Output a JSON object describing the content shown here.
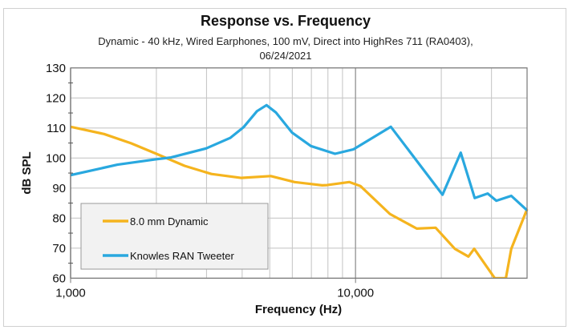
{
  "chart_data": {
    "type": "line",
    "title": "Response vs. Frequency",
    "subtitle_line1": "Dynamic - 40 kHz,  Wired Earphones, 100 mV, Direct into HighRes 711 (RA0403),",
    "subtitle_line2": "06/24/2021",
    "xlabel": "Frequency (Hz)",
    "ylabel": "dB SPL",
    "xscale": "log",
    "xlim": [
      1000,
      40000
    ],
    "ylim": [
      60,
      130
    ],
    "xticks": [
      {
        "value": 1000,
        "label": "1,000"
      },
      {
        "value": 10000,
        "label": "10,000"
      }
    ],
    "yticks": [
      60,
      70,
      80,
      90,
      100,
      110,
      120,
      130
    ],
    "grid": true,
    "legend_position": "bottom-left",
    "series": [
      {
        "name": "8.0 mm Dynamic",
        "color": "#F5B41E",
        "x": [
          1000,
          1310,
          1630,
          2000,
          2510,
          3120,
          3960,
          5040,
          6110,
          7640,
          7940,
          9500,
          10400,
          13200,
          16400,
          19100,
          22300,
          24900,
          26100,
          30800,
          33700,
          35200,
          40000
        ],
        "y": [
          110.4,
          108,
          104.9,
          101.4,
          97.4,
          94.7,
          93.4,
          94,
          92,
          90.9,
          91,
          92,
          90.7,
          81.4,
          76.5,
          76.8,
          69.8,
          67.2,
          69.8,
          60,
          60,
          69.8,
          83
        ]
      },
      {
        "name": "Knowles RAN Tweeter",
        "color": "#29A8DF",
        "x": [
          1000,
          1460,
          2000,
          2250,
          2990,
          3630,
          4050,
          4510,
          4870,
          5250,
          5980,
          6970,
          8470,
          9840,
          13300,
          20200,
          23400,
          26200,
          29100,
          31200,
          35200,
          39900,
          40000
        ],
        "y": [
          94.3,
          97.8,
          99.6,
          100.2,
          103.2,
          106.7,
          110.3,
          115.6,
          117.6,
          115.2,
          108.5,
          104,
          101.4,
          102.9,
          110.4,
          87.8,
          101.8,
          86.7,
          88.2,
          85.8,
          87.4,
          82.7,
          82.7
        ]
      }
    ]
  }
}
